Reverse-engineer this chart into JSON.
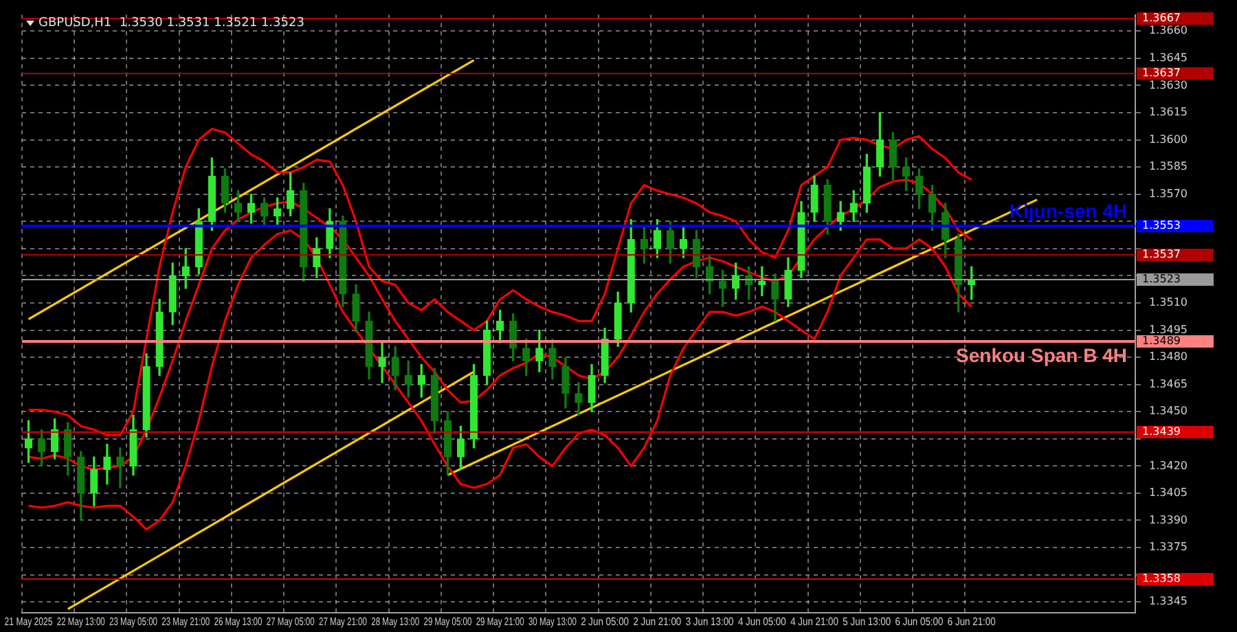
{
  "chart_data": {
    "type": "candlestick",
    "title": "GBPUSD,H1  1.3530 1.3531 1.3521 1.3523",
    "categories": [
      "21 May 2025",
      null,
      null,
      null,
      "22 May 13:00",
      null,
      null,
      null,
      "23 May 05:00",
      null,
      null,
      null,
      "23 May 21:00",
      null,
      null,
      null,
      "26 May 13:00",
      null,
      null,
      null,
      "27 May 05:00",
      null,
      null,
      null,
      "27 May 21:00",
      null,
      null,
      null,
      "28 May 13:00",
      null,
      null,
      null,
      "29 May 05:00",
      null,
      null,
      null,
      "29 May 21:00",
      null,
      null,
      null,
      "30 May 13:00",
      null,
      null,
      null,
      "2 Jun 05:00",
      null,
      null,
      null,
      "2 Jun 21:00",
      null,
      null,
      null,
      "3 Jun 13:00",
      null,
      null,
      null,
      "4 Jun 05:00",
      null,
      null,
      null,
      "4 Jun 21:00",
      null,
      null,
      null,
      "5 Jun 13:00",
      null,
      null,
      null,
      "6 Jun 05:00",
      null,
      null,
      null,
      "6 Jun 21:00",
      null,
      null,
      null,
      null,
      null,
      null,
      null,
      null,
      null,
      null,
      null,
      null
    ],
    "colors": [
      "#33e633",
      "#0f7a0f",
      "#33e633",
      "#0f7a0f",
      "#0f7a0f",
      "#33e633",
      "#33e633",
      "#0f7a0f",
      "#33e633",
      "#33e633",
      "#33e633",
      "#33e633",
      "#33e633",
      "#33e633",
      "#33e633",
      "#0f7a0f",
      "#0f7a0f",
      "#33e633",
      "#0f7a0f",
      "#33e633",
      "#33e633",
      "#0f7a0f",
      "#33e633",
      "#33e633",
      "#0f7a0f",
      "#0f7a0f",
      "#0f7a0f",
      "#33e633",
      "#0f7a0f",
      "#0f7a0f",
      "#33e633",
      "#0f7a0f",
      "#0f7a0f",
      "#33e633",
      "#33e633",
      "#33e633",
      "#33e633",
      "#0f7a0f",
      "#0f7a0f",
      "#33e633",
      "#0f7a0f",
      "#0f7a0f",
      "#0f7a0f",
      "#33e633",
      "#33e633",
      "#33e633",
      "#33e633",
      "#0f7a0f",
      "#33e633",
      "#0f7a0f",
      "#33e633",
      "#0f7a0f",
      "#0f7a0f",
      "#0f7a0f",
      "#33e633",
      "#0f7a0f",
      "#33e633",
      "#0f7a0f",
      "#33e633",
      "#33e633",
      "#33e633",
      "#0f7a0f",
      "#33e633",
      "#33e633",
      "#33e633",
      "#33e633",
      "#0f7a0f",
      "#0f7a0f",
      "#0f7a0f",
      "#0f7a0f",
      "#0f7a0f",
      "#0f7a0f",
      "#33e633",
      null,
      null,
      null,
      null,
      null,
      null,
      null,
      null,
      null,
      null,
      null,
      null
    ],
    "ohlc": [
      [
        1.343,
        1.3445,
        1.3422,
        1.3435
      ],
      [
        1.3435,
        1.344,
        1.342,
        1.3428
      ],
      [
        1.3428,
        1.3446,
        1.3424,
        1.344
      ],
      [
        1.344,
        1.3444,
        1.3415,
        1.3425
      ],
      [
        1.3425,
        1.3428,
        1.339,
        1.3405
      ],
      [
        1.3405,
        1.3425,
        1.3398,
        1.3418
      ],
      [
        1.3418,
        1.3432,
        1.341,
        1.3425
      ],
      [
        1.3425,
        1.343,
        1.3408,
        1.342
      ],
      [
        1.342,
        1.3448,
        1.3415,
        1.344
      ],
      [
        1.344,
        1.3482,
        1.3436,
        1.3475
      ],
      [
        1.3475,
        1.3512,
        1.347,
        1.3505
      ],
      [
        1.3505,
        1.3532,
        1.3498,
        1.3525
      ],
      [
        1.3525,
        1.354,
        1.3518,
        1.353
      ],
      [
        1.353,
        1.3562,
        1.3526,
        1.3555
      ],
      [
        1.3555,
        1.359,
        1.355,
        1.358
      ],
      [
        1.358,
        1.3584,
        1.356,
        1.3565
      ],
      [
        1.3565,
        1.3572,
        1.3555,
        1.356
      ],
      [
        1.356,
        1.357,
        1.3554,
        1.3565
      ],
      [
        1.3565,
        1.3568,
        1.3552,
        1.3558
      ],
      [
        1.3558,
        1.3568,
        1.3553,
        1.3562
      ],
      [
        1.3562,
        1.3582,
        1.3558,
        1.3572
      ],
      [
        1.3572,
        1.3576,
        1.3522,
        1.353
      ],
      [
        1.353,
        1.3546,
        1.3524,
        1.354
      ],
      [
        1.354,
        1.3562,
        1.3535,
        1.3555
      ],
      [
        1.3555,
        1.3558,
        1.3508,
        1.3515
      ],
      [
        1.3515,
        1.352,
        1.3494,
        1.35
      ],
      [
        1.35,
        1.3505,
        1.3468,
        1.3475
      ],
      [
        1.3475,
        1.3488,
        1.3466,
        1.348
      ],
      [
        1.348,
        1.3486,
        1.3462,
        1.347
      ],
      [
        1.347,
        1.3478,
        1.3458,
        1.3465
      ],
      [
        1.3465,
        1.3476,
        1.3458,
        1.347
      ],
      [
        1.347,
        1.3474,
        1.3438,
        1.3445
      ],
      [
        1.3445,
        1.345,
        1.3415,
        1.3425
      ],
      [
        1.3425,
        1.3442,
        1.3418,
        1.3435
      ],
      [
        1.3435,
        1.3476,
        1.343,
        1.347
      ],
      [
        1.347,
        1.35,
        1.3465,
        1.3495
      ],
      [
        1.3495,
        1.3506,
        1.3488,
        1.35
      ],
      [
        1.35,
        1.3504,
        1.3478,
        1.3485
      ],
      [
        1.3485,
        1.349,
        1.347,
        1.3478
      ],
      [
        1.3478,
        1.3495,
        1.3472,
        1.3485
      ],
      [
        1.3485,
        1.349,
        1.3468,
        1.3475
      ],
      [
        1.3475,
        1.348,
        1.3452,
        1.346
      ],
      [
        1.346,
        1.3466,
        1.3448,
        1.3455
      ],
      [
        1.3455,
        1.3476,
        1.345,
        1.347
      ],
      [
        1.347,
        1.3496,
        1.3466,
        1.349
      ],
      [
        1.349,
        1.3516,
        1.3486,
        1.351
      ],
      [
        1.351,
        1.3556,
        1.3505,
        1.3545
      ],
      [
        1.3545,
        1.3552,
        1.3532,
        1.354
      ],
      [
        1.354,
        1.3556,
        1.3535,
        1.355
      ],
      [
        1.355,
        1.3555,
        1.3532,
        1.354
      ],
      [
        1.354,
        1.3552,
        1.3535,
        1.3545
      ],
      [
        1.3545,
        1.355,
        1.3524,
        1.353
      ],
      [
        1.353,
        1.3536,
        1.3515,
        1.3522
      ],
      [
        1.3522,
        1.3528,
        1.3508,
        1.3518
      ],
      [
        1.3518,
        1.3532,
        1.3512,
        1.3525
      ],
      [
        1.3525,
        1.353,
        1.3512,
        1.352
      ],
      [
        1.352,
        1.353,
        1.3514,
        1.3522
      ],
      [
        1.3522,
        1.3526,
        1.35,
        1.3512
      ],
      [
        1.3512,
        1.3535,
        1.3508,
        1.3528
      ],
      [
        1.3528,
        1.3566,
        1.3524,
        1.356
      ],
      [
        1.356,
        1.358,
        1.3555,
        1.3575
      ],
      [
        1.3575,
        1.3578,
        1.3548,
        1.3555
      ],
      [
        1.3555,
        1.3566,
        1.355,
        1.356
      ],
      [
        1.356,
        1.3572,
        1.3555,
        1.3565
      ],
      [
        1.3565,
        1.3592,
        1.356,
        1.3585
      ],
      [
        1.3585,
        1.3615,
        1.358,
        1.36
      ],
      [
        1.36,
        1.3604,
        1.3578,
        1.3585
      ],
      [
        1.3585,
        1.359,
        1.3572,
        1.358
      ],
      [
        1.358,
        1.3584,
        1.3562,
        1.357
      ],
      [
        1.357,
        1.3575,
        1.355,
        1.356
      ],
      [
        1.356,
        1.3565,
        1.3535,
        1.3545
      ],
      [
        1.3545,
        1.3548,
        1.3505,
        1.352
      ],
      [
        1.352,
        1.353,
        1.3512,
        1.3523
      ],
      null,
      null,
      null,
      null,
      null,
      null,
      null,
      null,
      null,
      null,
      null,
      null
    ],
    "series": [
      {
        "type": "line",
        "color": "#ff0000",
        "values": [
          1.3451,
          1.3451,
          1.345,
          1.3448,
          1.3442,
          1.344,
          1.3437,
          1.3437,
          1.345,
          1.349,
          1.353,
          1.356,
          1.3585,
          1.36,
          1.3606,
          1.3604,
          1.3598,
          1.3592,
          1.3588,
          1.3582,
          1.3582,
          1.3585,
          1.3589,
          1.3588,
          1.3575,
          1.3555,
          1.353,
          1.3522,
          1.352,
          1.351,
          1.3506,
          1.3512,
          1.3505,
          1.35,
          1.3495,
          1.35,
          1.3512,
          1.3517,
          1.3512,
          1.3508,
          1.3505,
          1.3503,
          1.35,
          1.35,
          1.3515,
          1.354,
          1.3565,
          1.3575,
          1.3572,
          1.357,
          1.3568,
          1.3565,
          1.356,
          1.3558,
          1.3555,
          1.3545,
          1.3538,
          1.3535,
          1.355,
          1.3575,
          1.358,
          1.3585,
          1.36,
          1.3601,
          1.36,
          1.3597,
          1.3595,
          1.36,
          1.3602,
          1.3595,
          1.359,
          1.3582,
          1.3578,
          null,
          null,
          null,
          null,
          null,
          null,
          null,
          null,
          null,
          null,
          null,
          null
        ]
      },
      {
        "type": "line",
        "color": "#ff0000",
        "values": [
          1.3425,
          1.3424,
          1.3426,
          1.3424,
          1.342,
          1.3418,
          1.3419,
          1.342,
          1.3425,
          1.344,
          1.3458,
          1.3478,
          1.35,
          1.352,
          1.354,
          1.355,
          1.3556,
          1.356,
          1.3563,
          1.3565,
          1.3566,
          1.3562,
          1.3557,
          1.3552,
          1.3545,
          1.3535,
          1.3525,
          1.3512,
          1.35,
          1.349,
          1.348,
          1.3472,
          1.3462,
          1.3455,
          1.3456,
          1.3462,
          1.347,
          1.3474,
          1.3477,
          1.3482,
          1.348,
          1.3475,
          1.347,
          1.3468,
          1.3472,
          1.348,
          1.3492,
          1.3505,
          1.3515,
          1.3523,
          1.353,
          1.3533,
          1.3535,
          1.3533,
          1.353,
          1.3527,
          1.3524,
          1.3522,
          1.3525,
          1.3535,
          1.3545,
          1.3552,
          1.3558,
          1.3562,
          1.3567,
          1.3574,
          1.3577,
          1.3578,
          1.3576,
          1.357,
          1.3562,
          1.355,
          1.3545,
          null,
          null,
          null,
          null,
          null,
          null,
          null,
          null,
          null,
          null,
          null,
          null
        ]
      },
      {
        "type": "line",
        "color": "#ff0000",
        "values": [
          1.3398,
          1.3397,
          1.3398,
          1.34,
          1.3398,
          1.3397,
          1.3398,
          1.3398,
          1.3392,
          1.3385,
          1.339,
          1.34,
          1.342,
          1.3445,
          1.3475,
          1.35,
          1.352,
          1.3535,
          1.3542,
          1.3548,
          1.355,
          1.3545,
          1.3535,
          1.352,
          1.3505,
          1.3495,
          1.3485,
          1.3475,
          1.3465,
          1.3455,
          1.3445,
          1.3432,
          1.342,
          1.341,
          1.3408,
          1.341,
          1.3415,
          1.343,
          1.3432,
          1.3425,
          1.342,
          1.343,
          1.3438,
          1.344,
          1.3437,
          1.343,
          1.342,
          1.343,
          1.3445,
          1.347,
          1.3485,
          1.3495,
          1.3505,
          1.3505,
          1.3503,
          1.3505,
          1.3508,
          1.3505,
          1.35,
          1.3495,
          1.349,
          1.3505,
          1.3525,
          1.3535,
          1.3545,
          1.3545,
          1.354,
          1.354,
          1.3545,
          1.354,
          1.353,
          1.3515,
          1.3508,
          null,
          null,
          null,
          null,
          null,
          null,
          null,
          null,
          null,
          null,
          null,
          null
        ]
      },
      {
        "type": "line",
        "color": "#ffcc00",
        "values": [
          1.3501,
          null,
          null,
          null,
          null,
          null,
          null,
          null,
          null,
          null,
          null,
          null,
          null,
          null,
          null,
          null,
          null,
          null,
          null,
          null,
          null,
          null,
          null,
          null,
          null,
          null,
          null,
          null,
          null,
          null,
          null,
          null,
          null,
          null,
          1.3644,
          null,
          null,
          null,
          null,
          null,
          null,
          null,
          null,
          null,
          null,
          null,
          null,
          null,
          null,
          null,
          null,
          null,
          null,
          null,
          null,
          null,
          null,
          null,
          null,
          null,
          null,
          null,
          null,
          null,
          null,
          null,
          null,
          null,
          null,
          null,
          null,
          null,
          null,
          null,
          null,
          null,
          null,
          null,
          null,
          null,
          null,
          null,
          null,
          null,
          null
        ]
      },
      {
        "type": "line",
        "color": "#ffcc00",
        "values": [
          null,
          null,
          null,
          1.3341,
          null,
          null,
          null,
          null,
          null,
          null,
          null,
          null,
          null,
          null,
          null,
          null,
          null,
          null,
          null,
          null,
          null,
          null,
          null,
          null,
          null,
          null,
          null,
          null,
          null,
          null,
          null,
          null,
          null,
          null,
          1.3472,
          null,
          null,
          null,
          null,
          null,
          null,
          null,
          null,
          null,
          null,
          null,
          null,
          null,
          null,
          null,
          null,
          null,
          null,
          null,
          null,
          null,
          null,
          null,
          null,
          null,
          null,
          null,
          null,
          null,
          null,
          null,
          null,
          null,
          null,
          null,
          null,
          null,
          null,
          null,
          null,
          null,
          null,
          null,
          null,
          null,
          null,
          null,
          null,
          null,
          null
        ]
      },
      {
        "type": "line",
        "color": "#ffcc00",
        "values": [
          null,
          null,
          null,
          null,
          null,
          null,
          null,
          null,
          null,
          null,
          null,
          null,
          null,
          null,
          null,
          null,
          null,
          null,
          null,
          null,
          null,
          null,
          null,
          null,
          null,
          null,
          null,
          null,
          null,
          null,
          null,
          null,
          1.3415,
          null,
          null,
          null,
          null,
          null,
          null,
          null,
          null,
          null,
          null,
          null,
          null,
          null,
          null,
          null,
          null,
          null,
          null,
          null,
          null,
          null,
          null,
          null,
          null,
          null,
          null,
          null,
          null,
          null,
          null,
          null,
          null,
          null,
          null,
          null,
          null,
          null,
          null,
          null,
          null,
          null,
          null,
          null,
          null,
          1.3567,
          null,
          null,
          null,
          null,
          null,
          null,
          null
        ]
      }
    ],
    "ylim": [
      1.3339,
      1.3669
    ],
    "yticks": [
      1.3345,
      {
        "value": 1.336,
        "label": null
      },
      1.3375,
      {
        "value": 1.339,
        "label": "1.3390"
      },
      1.3405,
      {
        "value": 1.342,
        "label": "1.3420"
      },
      {
        "value": 1.3435,
        "label": null
      },
      {
        "value": 1.345,
        "label": "1.3450"
      },
      1.3465,
      {
        "value": 1.348,
        "label": "1.3480"
      },
      1.3495,
      {
        "value": 1.351,
        "label": "1.3510"
      },
      {
        "value": 1.3525,
        "label": null
      },
      {
        "value": 1.354,
        "label": null
      },
      {
        "value": 1.3555,
        "label": null
      },
      {
        "value": 1.357,
        "label": "1.3570"
      },
      1.3585,
      {
        "value": 1.36,
        "label": "1.3600"
      },
      1.3615,
      {
        "value": 1.363,
        "label": "1.3630"
      },
      1.3645,
      {
        "value": 1.366,
        "label": "1.3660"
      }
    ],
    "grid": true,
    "ref_lines": [
      {
        "axis": "y",
        "value": 1.3667,
        "label": null,
        "color": "#b00000"
      },
      {
        "axis": "y",
        "value": 1.3637,
        "label": null,
        "color": "#b00000"
      },
      {
        "axis": "y",
        "value": 1.3553,
        "label": "Kijun-sen 4H",
        "color": "#0000ff"
      },
      {
        "axis": "y",
        "value": 1.3537,
        "label": null,
        "color": "#b00000"
      },
      {
        "axis": "y",
        "value": 1.3523,
        "label": null,
        "color": "#9a9a9a"
      },
      {
        "axis": "y",
        "value": 1.3489,
        "label": "Senkou Span B 4H",
        "color": "#ff8080"
      },
      {
        "axis": "y",
        "value": 1.3439,
        "label": null,
        "color": "#dd0000"
      },
      {
        "axis": "y",
        "value": 1.3358,
        "label": null,
        "color": "#dd0000"
      }
    ],
    "annotations": [
      "1.3667",
      "1.3637",
      "1.3553",
      "1.3537",
      "1.3523",
      "1.3489",
      "1.3439",
      "1.3358"
    ]
  }
}
